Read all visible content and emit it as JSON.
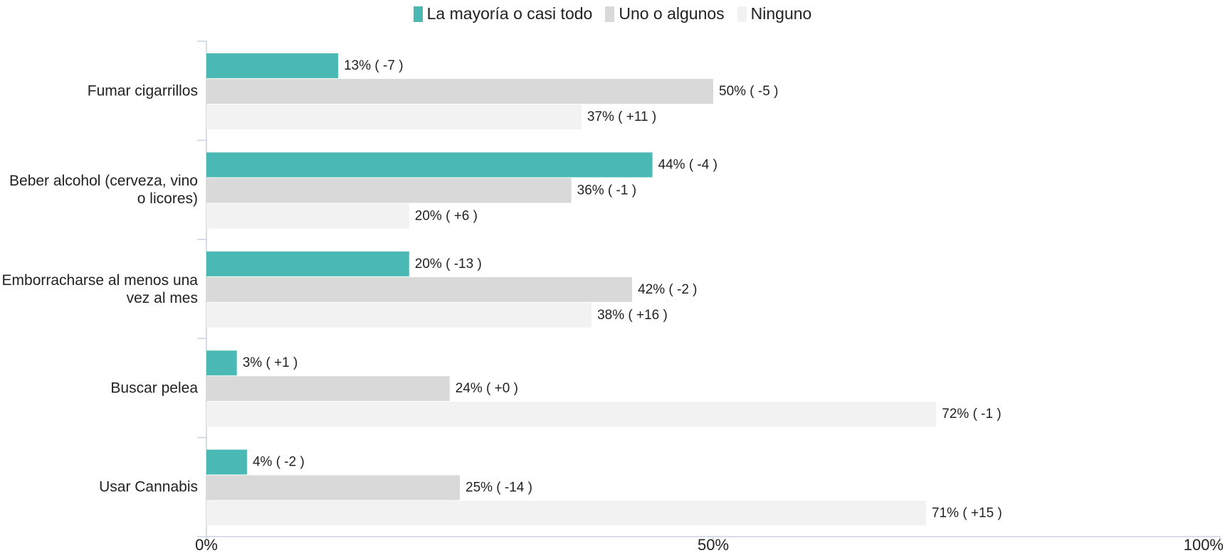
{
  "chart_data": {
    "type": "hbar",
    "categories": [
      "Fumar cigarrillos",
      "Beber alcohol (cerveza, vino o licores)",
      "Emborracharse al menos una vez al mes",
      "Buscar pelea",
      "Usar Cannabis"
    ],
    "series": [
      {
        "name": "La mayoría o casi todo",
        "color": "#4ab9b3",
        "values": [
          13,
          44,
          20,
          3,
          4
        ],
        "value_labels": [
          "13% ( -7 )",
          "44% ( -4 )",
          "20% ( -13 )",
          "3% ( +1 )",
          "4% ( -2 )"
        ]
      },
      {
        "name": "Uno o algunos",
        "color": "#d9d9d9",
        "values": [
          50,
          36,
          42,
          24,
          25
        ],
        "value_labels": [
          "50% ( -5 )",
          "36% ( -1 )",
          "42% ( -2 )",
          "24% ( +0 )",
          "25% ( -14 )"
        ]
      },
      {
        "name": "Ninguno",
        "color": "#f2f2f2",
        "values": [
          37,
          20,
          38,
          72,
          71
        ],
        "value_labels": [
          "37% ( +11 )",
          "20% ( +6 )",
          "38% ( +16 )",
          "72% ( -1 )",
          "71% ( +15 )"
        ]
      }
    ],
    "xlim": [
      0,
      100
    ],
    "xticks": [
      {
        "value": 0,
        "label": "0%"
      },
      {
        "value": 50,
        "label": "50%"
      },
      {
        "value": 100,
        "label": "100%"
      }
    ],
    "legend": "top"
  }
}
